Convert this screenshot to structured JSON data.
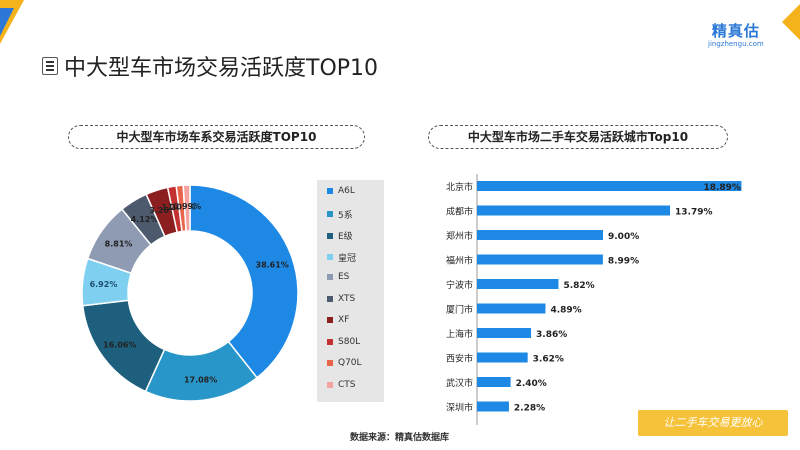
{
  "header": {
    "logo_name": "精真估",
    "logo_url": "jingzhengu.com",
    "title": "中大型车市场交易活跃度TOP10"
  },
  "colors": {
    "accent_blue": "#2b78d6",
    "accent_yellow": "#f6b21a",
    "bar_blue": "#1e88e5"
  },
  "footer": {
    "source": "数据来源：精真估数据库",
    "slogan": "让二手车交易更放心"
  },
  "chart_data": [
    {
      "type": "pie",
      "title": "中大型车市场车系交易活跃度TOP10",
      "categories": [
        "A6L",
        "5系",
        "E级",
        "皇冠",
        "ES",
        "XTS",
        "XF",
        "S80L",
        "Q70L",
        "CTS"
      ],
      "values": [
        38.61,
        17.08,
        16.06,
        6.92,
        8.81,
        4.12,
        3.26,
        1.26,
        1.01,
        0.99
      ],
      "labels": [
        "38.61%",
        "17.08%",
        "16.06%",
        "6.92%",
        "8.81%",
        "4.12%",
        "3.26%",
        "1.26%",
        "1.01%",
        "0.99%"
      ],
      "colors": [
        "#1e88e5",
        "#2896c8",
        "#1d5f7c",
        "#7fd0f0",
        "#8e9bb3",
        "#4d5a6e",
        "#8b1f1f",
        "#c23232",
        "#e8644a",
        "#f4a3a0"
      ],
      "legend_position": "right"
    },
    {
      "type": "bar",
      "orientation": "horizontal",
      "title": "中大型车市场二手车交易活跃城市Top10",
      "categories": [
        "北京市",
        "成都市",
        "郑州市",
        "福州市",
        "宁波市",
        "厦门市",
        "上海市",
        "西安市",
        "武汉市",
        "深圳市"
      ],
      "values": [
        18.89,
        13.79,
        9.0,
        8.99,
        5.82,
        4.89,
        3.86,
        3.62,
        2.4,
        2.28
      ],
      "labels": [
        "18.89%",
        "13.79%",
        "9.00%",
        "8.99%",
        "5.82%",
        "4.89%",
        "3.86%",
        "3.62%",
        "2.40%",
        "2.28%"
      ],
      "xlim": [
        0,
        20
      ],
      "color": "#1e88e5"
    }
  ]
}
